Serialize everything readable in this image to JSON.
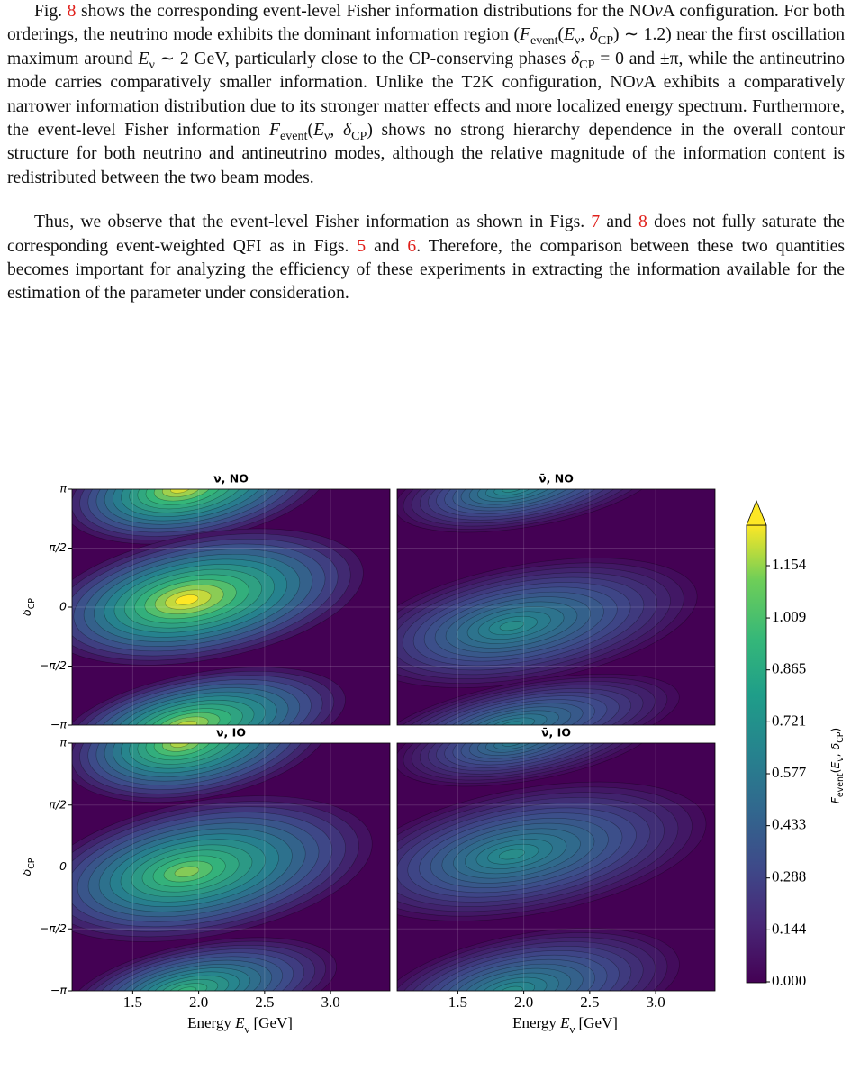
{
  "paragraphs": [
    [
      "Fig. ",
      {
        "t": "8",
        "s": "ref"
      },
      " shows the corresponding event-level Fisher information distributions for the NO",
      {
        "t": "ν",
        "s": "i"
      },
      "A configuration. For both orderings, the neutrino mode exhibits the dominant information region (",
      {
        "t": "F",
        "s": "i"
      },
      {
        "t": "event",
        "s": "sub"
      },
      "(",
      {
        "t": "E",
        "s": "i"
      },
      {
        "t": "ν",
        "s": "sub"
      },
      ", ",
      {
        "t": "δ",
        "s": "i"
      },
      {
        "t": "CP",
        "s": "sub"
      },
      ") ∼ 1.2) near the first oscillation maximum around ",
      {
        "t": "E",
        "s": "i"
      },
      {
        "t": "ν",
        "s": "sub"
      },
      " ∼ 2 GeV, particularly close to the CP-conserving phases ",
      {
        "t": "δ",
        "s": "i"
      },
      {
        "t": "CP",
        "s": "sub"
      },
      " = 0 and ±π, while the antineutrino mode carries comparatively smaller information. Unlike the T2K configuration, NO",
      {
        "t": "ν",
        "s": "i"
      },
      "A exhibits a comparatively narrower information distribution due to its stronger matter effects and more localized energy spectrum. Furthermore, the event-level Fisher information ",
      {
        "t": "F",
        "s": "i"
      },
      {
        "t": "event",
        "s": "sub"
      },
      "(",
      {
        "t": "E",
        "s": "i"
      },
      {
        "t": "ν",
        "s": "sub"
      },
      ", ",
      {
        "t": "δ",
        "s": "i"
      },
      {
        "t": "CP",
        "s": "sub"
      },
      ") shows no strong hierarchy dependence in the overall contour structure for both neutrino and antineutrino modes, although the relative magnitude of the information content is redistributed between the two beam modes."
    ],
    [
      "Thus, we observe that the event-level Fisher information as shown in Figs. ",
      {
        "t": "7",
        "s": "ref"
      },
      " and ",
      {
        "t": "8",
        "s": "ref"
      },
      " does not fully saturate the corresponding event-weighted QFI as in Figs. ",
      {
        "t": "5",
        "s": "ref"
      },
      " and ",
      {
        "t": "6",
        "s": "ref"
      },
      ". Therefore, the comparison between these two quantities becomes important for analyzing the efficiency of these experiments in extracting the information available for the estimation of the parameter under consideration."
    ]
  ],
  "figure": {
    "panels": [
      "ν, NO",
      "ν̄, NO",
      "ν, IO",
      "ν̄, IO"
    ],
    "y_label": [
      {
        "t": "δ",
        "s": "i"
      },
      {
        "t": "CP",
        "s": "sub"
      }
    ],
    "x_label": [
      "Energy ",
      {
        "t": "E",
        "s": "i"
      },
      {
        "t": "ν",
        "s": "sub"
      },
      " [GeV]"
    ],
    "xticks": [
      "1.5",
      "2.0",
      "2.5",
      "3.0"
    ],
    "yticks": [
      "π",
      "π/2",
      "0",
      "−π/2",
      "−π"
    ],
    "colorbar": {
      "label": [
        {
          "t": "F",
          "s": "i"
        },
        {
          "t": "event",
          "s": "sub"
        },
        "(",
        {
          "t": "E",
          "s": "i"
        },
        {
          "t": "ν",
          "s": "sub"
        },
        ", ",
        {
          "t": "δ",
          "s": "i"
        },
        {
          "t": "CP",
          "s": "sub"
        },
        ")"
      ],
      "ticks": [
        "0.000",
        "0.144",
        "0.288",
        "0.433",
        "0.577",
        "0.721",
        "0.865",
        "1.009",
        "1.154"
      ]
    }
  }
}
